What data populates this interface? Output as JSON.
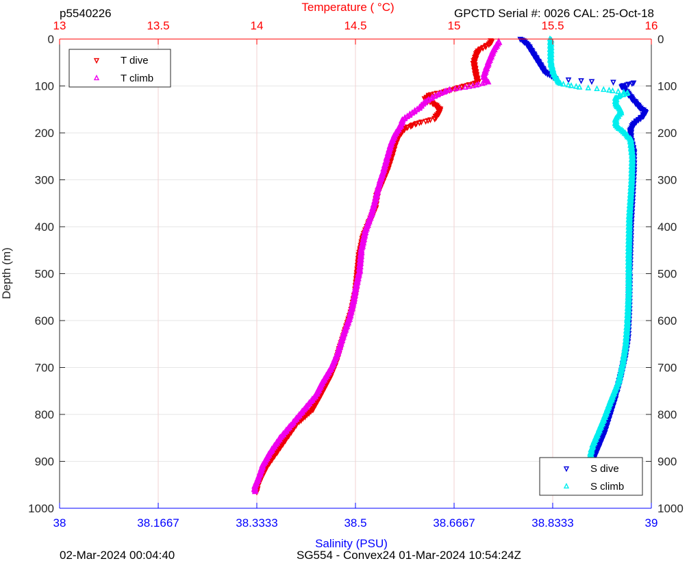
{
  "header": {
    "profile_id": "p5540226",
    "serial_cal": "GPCTD Serial #: 0026 CAL: 25-Oct-18"
  },
  "footer": {
    "generated": "02-Mar-2024 00:04:40",
    "mission": "SG554 - Convex24 01-Mar-2024 10:54:24Z"
  },
  "colors": {
    "temp_axis": "#ff0000",
    "sal_axis": "#0000ff",
    "t_dive": "#ee0000",
    "t_climb": "#ee00ee",
    "s_dive": "#0000dd",
    "s_climb": "#00eeee",
    "temp_grid": "#f2d2d2",
    "depth_grid": "#e6e6e6"
  },
  "chart_data": {
    "type": "scatter",
    "depth_axis": {
      "label": "Depth (m)",
      "range": [
        0,
        1000
      ],
      "reversed": true,
      "ticks": [
        "0",
        "100",
        "200",
        "300",
        "400",
        "500",
        "600",
        "700",
        "800",
        "900",
        "1000"
      ]
    },
    "temperature_axis": {
      "label": "Temperature (    °C)",
      "position": "top",
      "range": [
        13,
        16
      ],
      "ticks": [
        "13",
        "13.5",
        "14",
        "14.5",
        "15",
        "15.5",
        "16"
      ]
    },
    "salinity_axis": {
      "label": "Salinity (PSU)",
      "position": "bottom",
      "range": [
        38,
        39
      ],
      "ticks": [
        "38",
        "38.1667",
        "38.3333",
        "38.5",
        "38.6667",
        "38.8333",
        "39"
      ]
    },
    "grid": true,
    "legend_temperature": {
      "placement": "top-left",
      "entries": [
        "T dive",
        "T climb"
      ]
    },
    "legend_salinity": {
      "placement": "bottom-right",
      "entries": [
        "S dive",
        "S climb"
      ]
    },
    "series": [
      {
        "name": "T dive",
        "axis": "temperature",
        "marker": "triangle-down",
        "points": [
          [
            15.19,
            3
          ],
          [
            15.18,
            10
          ],
          [
            15.12,
            25
          ],
          [
            15.1,
            50
          ],
          [
            15.11,
            75
          ],
          [
            15.12,
            92
          ],
          [
            15.05,
            100
          ],
          [
            14.95,
            112
          ],
          [
            14.88,
            118
          ],
          [
            14.85,
            128
          ],
          [
            14.9,
            138
          ],
          [
            14.93,
            150
          ],
          [
            14.92,
            158
          ],
          [
            14.9,
            170
          ],
          [
            14.82,
            178
          ],
          [
            14.75,
            190
          ],
          [
            14.72,
            205
          ],
          [
            14.7,
            225
          ],
          [
            14.68,
            255
          ],
          [
            14.66,
            280
          ],
          [
            14.64,
            300
          ],
          [
            14.61,
            330
          ],
          [
            14.6,
            360
          ],
          [
            14.57,
            390
          ],
          [
            14.54,
            420
          ],
          [
            14.52,
            460
          ],
          [
            14.51,
            500
          ],
          [
            14.5,
            540
          ],
          [
            14.48,
            580
          ],
          [
            14.45,
            620
          ],
          [
            14.42,
            660
          ],
          [
            14.4,
            690
          ],
          [
            14.37,
            720
          ],
          [
            14.32,
            760
          ],
          [
            14.28,
            790
          ],
          [
            14.2,
            820
          ],
          [
            14.15,
            850
          ],
          [
            14.1,
            880
          ],
          [
            14.05,
            910
          ],
          [
            14.02,
            935
          ],
          [
            14.0,
            955
          ],
          [
            14.0,
            965
          ]
        ]
      },
      {
        "name": "T climb",
        "axis": "temperature",
        "marker": "triangle-up",
        "points": [
          [
            15.23,
            5
          ],
          [
            15.2,
            25
          ],
          [
            15.17,
            55
          ],
          [
            15.15,
            80
          ],
          [
            15.17,
            92
          ],
          [
            15.1,
            100
          ],
          [
            14.98,
            108
          ],
          [
            14.92,
            118
          ],
          [
            14.86,
            132
          ],
          [
            14.82,
            148
          ],
          [
            14.78,
            160
          ],
          [
            14.74,
            172
          ],
          [
            14.73,
            185
          ],
          [
            14.7,
            205
          ],
          [
            14.68,
            225
          ],
          [
            14.66,
            255
          ],
          [
            14.64,
            285
          ],
          [
            14.62,
            310
          ],
          [
            14.6,
            345
          ],
          [
            14.58,
            375
          ],
          [
            14.55,
            410
          ],
          [
            14.53,
            450
          ],
          [
            14.52,
            495
          ],
          [
            14.5,
            535
          ],
          [
            14.49,
            560
          ],
          [
            14.47,
            595
          ],
          [
            14.44,
            630
          ],
          [
            14.41,
            670
          ],
          [
            14.38,
            700
          ],
          [
            14.33,
            735
          ],
          [
            14.3,
            760
          ],
          [
            14.24,
            790
          ],
          [
            14.18,
            820
          ],
          [
            14.12,
            850
          ],
          [
            14.07,
            880
          ],
          [
            14.03,
            910
          ],
          [
            14.01,
            935
          ],
          [
            13.99,
            955
          ],
          [
            13.99,
            965
          ]
        ]
      },
      {
        "name": "S dive",
        "axis": "salinity",
        "marker": "triangle-down",
        "points": [
          [
            38.78,
            0
          ],
          [
            38.79,
            10
          ],
          [
            38.8,
            30
          ],
          [
            38.81,
            50
          ],
          [
            38.82,
            70
          ],
          [
            38.84,
            85
          ],
          [
            38.9,
            90
          ],
          [
            38.97,
            93
          ],
          [
            38.95,
            100
          ],
          [
            38.96,
            115
          ],
          [
            38.97,
            130
          ],
          [
            38.98,
            145
          ],
          [
            38.99,
            155
          ],
          [
            38.985,
            165
          ],
          [
            38.97,
            180
          ],
          [
            38.965,
            195
          ],
          [
            38.965,
            210
          ],
          [
            38.97,
            240
          ],
          [
            38.97,
            280
          ],
          [
            38.968,
            330
          ],
          [
            38.965,
            400
          ],
          [
            38.963,
            500
          ],
          [
            38.962,
            580
          ],
          [
            38.96,
            640
          ],
          [
            38.955,
            680
          ],
          [
            38.948,
            720
          ],
          [
            38.94,
            760
          ],
          [
            38.93,
            800
          ],
          [
            38.92,
            840
          ],
          [
            38.91,
            870
          ],
          [
            38.9,
            900
          ],
          [
            38.898,
            940
          ],
          [
            38.895,
            965
          ]
        ]
      },
      {
        "name": "S climb",
        "axis": "salinity",
        "marker": "triangle-up",
        "points": [
          [
            38.83,
            0
          ],
          [
            38.83,
            20
          ],
          [
            38.83,
            50
          ],
          [
            38.835,
            75
          ],
          [
            38.845,
            95
          ],
          [
            38.88,
            103
          ],
          [
            38.92,
            108
          ],
          [
            38.96,
            115
          ],
          [
            38.94,
            125
          ],
          [
            38.94,
            140
          ],
          [
            38.95,
            155
          ],
          [
            38.94,
            170
          ],
          [
            38.94,
            185
          ],
          [
            38.955,
            200
          ],
          [
            38.965,
            215
          ],
          [
            38.968,
            250
          ],
          [
            38.967,
            300
          ],
          [
            38.963,
            380
          ],
          [
            38.962,
            460
          ],
          [
            38.962,
            540
          ],
          [
            38.96,
            600
          ],
          [
            38.957,
            650
          ],
          [
            38.952,
            690
          ],
          [
            38.945,
            730
          ],
          [
            38.932,
            770
          ],
          [
            38.92,
            810
          ],
          [
            38.91,
            840
          ],
          [
            38.9,
            870
          ],
          [
            38.895,
            900
          ],
          [
            38.893,
            940
          ],
          [
            38.89,
            965
          ]
        ]
      }
    ]
  }
}
